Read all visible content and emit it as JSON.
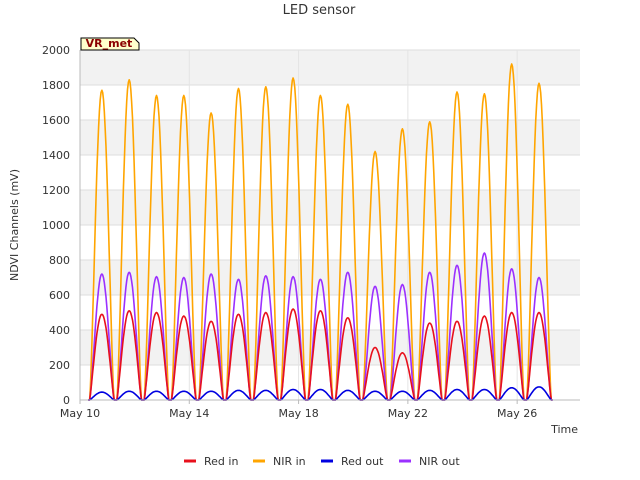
{
  "chart_data": {
    "type": "line",
    "title": "LED sensor",
    "xlabel": "Time",
    "ylabel": "NDVI Channels (mV)",
    "badge": "VR_met",
    "ylim": [
      0,
      2000
    ],
    "yticks": [
      0,
      200,
      400,
      600,
      800,
      1000,
      1200,
      1400,
      1600,
      1800,
      2000
    ],
    "xlim": [
      10,
      28.3
    ],
    "xticks": [
      {
        "day": 10,
        "label": "May 10"
      },
      {
        "day": 14,
        "label": "May 14"
      },
      {
        "day": 18,
        "label": "May 18"
      },
      {
        "day": 22,
        "label": "May 22"
      },
      {
        "day": 26,
        "label": "May 26"
      }
    ],
    "grid": true,
    "legend_position": "bottom",
    "daily_peak_day": [
      10.8,
      11.8,
      12.8,
      13.8,
      14.8,
      15.8,
      16.8,
      17.8,
      18.8,
      19.8,
      20.8,
      21.8,
      22.8,
      23.8,
      24.8,
      25.8,
      26.8
    ],
    "series": [
      {
        "name": "Red in",
        "color": "#e8101c",
        "daily_peaks": [
          490,
          510,
          500,
          480,
          450,
          490,
          500,
          520,
          510,
          470,
          300,
          270,
          440,
          450,
          480,
          500,
          500
        ]
      },
      {
        "name": "NIR in",
        "color": "#ffa500",
        "daily_peaks": [
          1770,
          1830,
          1740,
          1740,
          1640,
          1780,
          1790,
          1840,
          1740,
          1690,
          1420,
          1550,
          1590,
          1760,
          1750,
          1920,
          1810
        ]
      },
      {
        "name": "Red out",
        "color": "#0000e0",
        "daily_peaks": [
          45,
          50,
          50,
          50,
          50,
          55,
          55,
          60,
          60,
          55,
          50,
          50,
          55,
          60,
          60,
          70,
          75
        ]
      },
      {
        "name": "NIR out",
        "color": "#9b30ff",
        "daily_peaks": [
          720,
          730,
          705,
          700,
          720,
          690,
          710,
          705,
          690,
          730,
          650,
          660,
          730,
          770,
          840,
          750,
          700
        ]
      }
    ]
  }
}
